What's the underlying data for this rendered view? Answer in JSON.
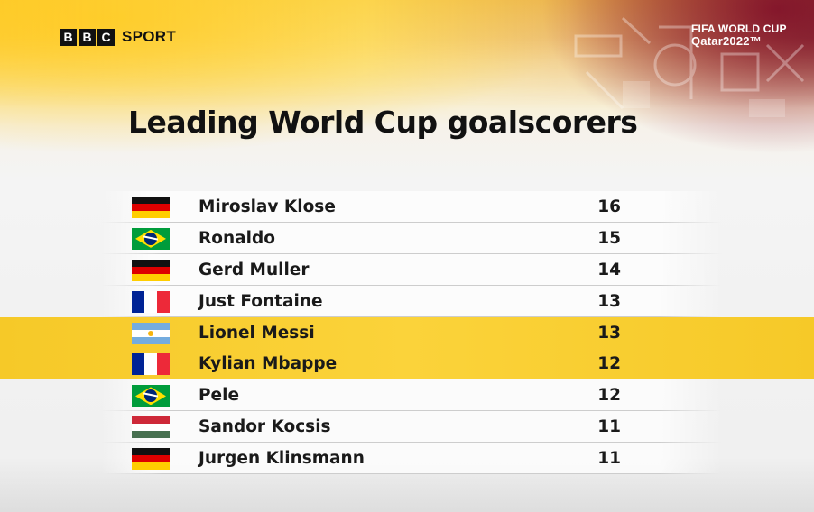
{
  "header": {
    "brand_box_letters": [
      "B",
      "B",
      "C"
    ],
    "brand_label": "SPORT",
    "event_line1": "FIFA WORLD CUP",
    "event_line2": "Qatar2022™"
  },
  "title": "Leading World Cup goalscorers",
  "rows": [
    {
      "flag": "germany",
      "name": "Miroslav Klose",
      "goals": "16",
      "highlighted": false
    },
    {
      "flag": "brazil",
      "name": "Ronaldo",
      "goals": "15",
      "highlighted": false
    },
    {
      "flag": "germany",
      "name": "Gerd Muller",
      "goals": "14",
      "highlighted": false
    },
    {
      "flag": "france",
      "name": "Just Fontaine",
      "goals": "13",
      "highlighted": false
    },
    {
      "flag": "argentina",
      "name": "Lionel Messi",
      "goals": "13",
      "highlighted": true
    },
    {
      "flag": "france",
      "name": "Kylian Mbappe",
      "goals": "12",
      "highlighted": true
    },
    {
      "flag": "brazil",
      "name": "Pele",
      "goals": "12",
      "highlighted": false
    },
    {
      "flag": "hungary",
      "name": "Sandor Kocsis",
      "goals": "11",
      "highlighted": false
    },
    {
      "flag": "germany",
      "name": "Jurgen Klinsmann",
      "goals": "11",
      "highlighted": false
    }
  ],
  "colors": {
    "highlight": "#f9cf33",
    "text": "#1a1a1a",
    "top_gold": "#f7d35a",
    "top_maroon": "#8c142d"
  }
}
